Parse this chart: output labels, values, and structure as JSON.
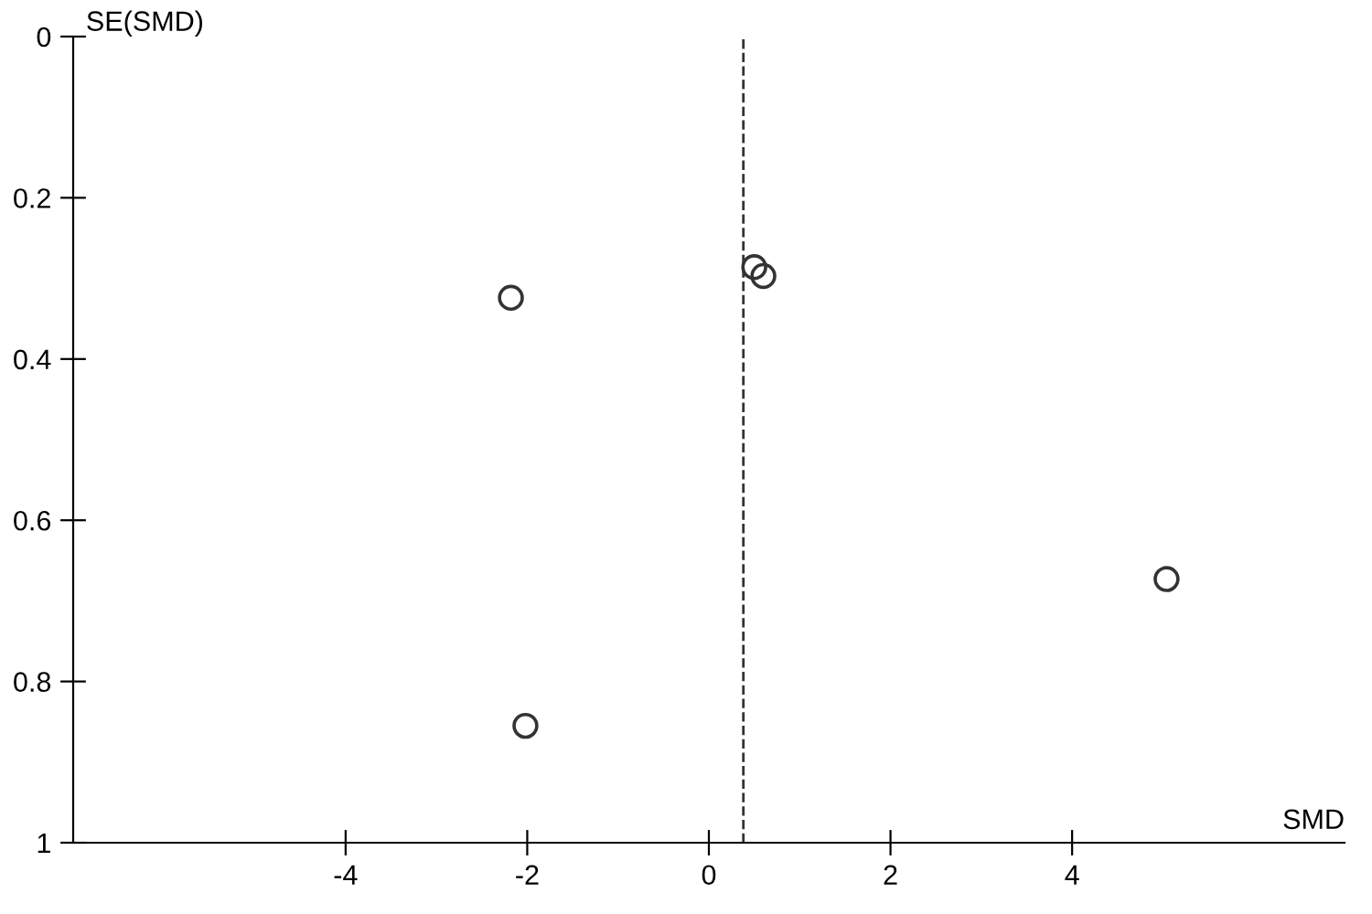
{
  "chart_data": {
    "type": "scatter",
    "xlabel": "SMD",
    "ylabel": "SE(SMD)",
    "series": [
      {
        "color": "#333333",
        "x": [
          -2.18,
          -2.02,
          0.5,
          0.6,
          5.04
        ],
        "values": [
          0.324,
          0.855,
          0.286,
          0.297,
          0.673
        ]
      }
    ],
    "marker": "circle",
    "xlim": [
      -7,
      7
    ],
    "xticks": [
      -4,
      -2,
      0,
      2,
      4
    ],
    "ylim": [
      1,
      0
    ],
    "yticks": [
      0,
      0.2,
      0.4,
      0.6,
      0.8,
      1
    ],
    "ref_lines": [
      {
        "axis": "x",
        "value": 0.38,
        "line_style": "dashed",
        "color": "#333333"
      }
    ],
    "grid": false,
    "legend": false
  }
}
